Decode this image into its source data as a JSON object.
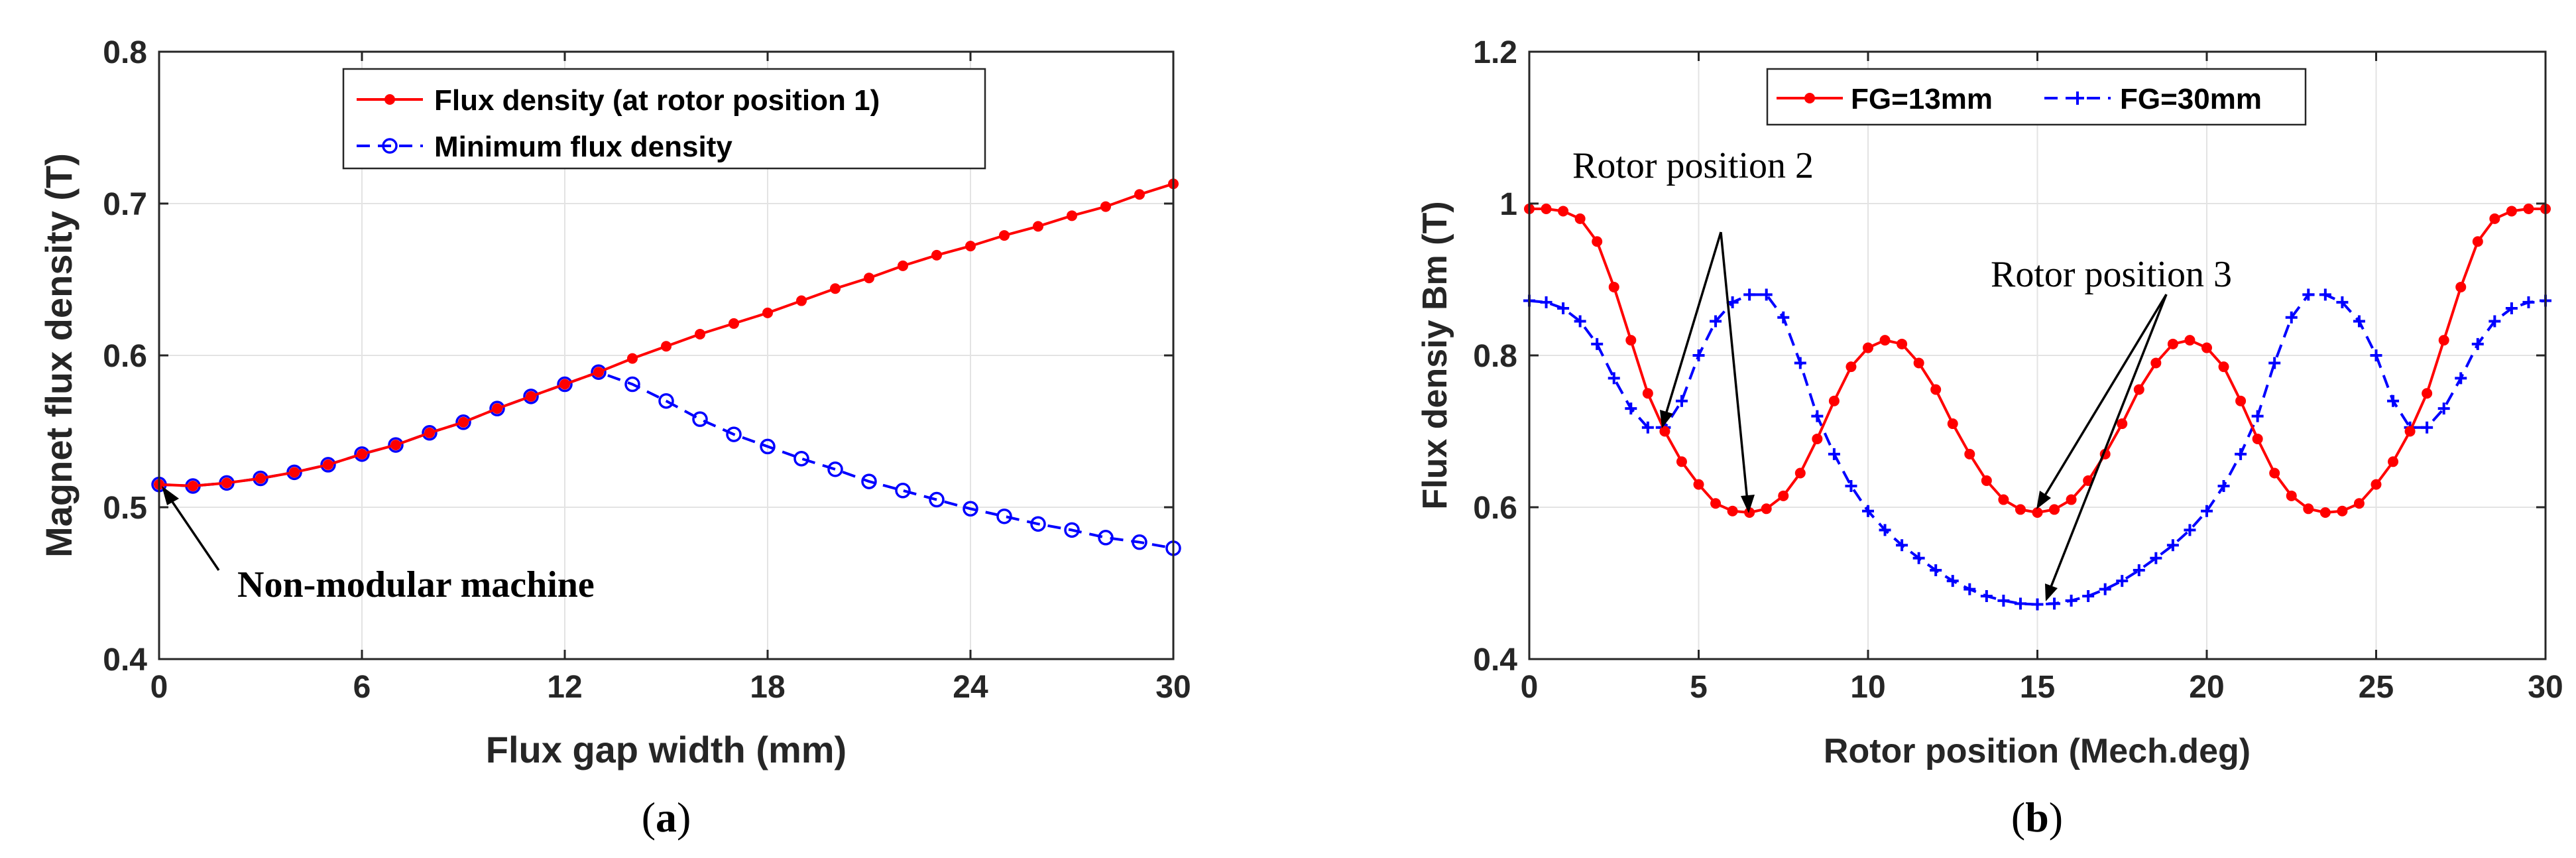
{
  "chart_data": [
    {
      "type": "line",
      "panel": "(a)",
      "panel_letter": "a",
      "xlabel": "Flux gap width (mm)",
      "ylabel": "Magnet flux density (T)",
      "xlim": [
        0,
        30
      ],
      "ylim": [
        0.4,
        0.8
      ],
      "xticks": [
        0,
        6,
        12,
        18,
        24,
        30
      ],
      "yticks": [
        0.4,
        0.5,
        0.6,
        0.7,
        0.8
      ],
      "xtick_labels": [
        "0",
        "6",
        "12",
        "18",
        "24",
        "30"
      ],
      "ytick_labels": [
        "0.4",
        "0.5",
        "0.6",
        "0.7",
        "0.8"
      ],
      "grid": true,
      "legend_position": "top-right",
      "series": [
        {
          "name": "Flux density (at rotor position 1)",
          "color": "#ff0000",
          "style": "solid",
          "marker": "dot",
          "x": [
            0,
            1,
            2,
            3,
            4,
            5,
            6,
            7,
            8,
            9,
            10,
            11,
            12,
            13,
            14,
            15,
            16,
            17,
            18,
            19,
            20,
            21,
            22,
            23,
            24,
            25,
            26,
            27,
            28,
            29,
            30
          ],
          "values": [
            0.515,
            0.514,
            0.516,
            0.519,
            0.523,
            0.528,
            0.535,
            0.541,
            0.549,
            0.556,
            0.565,
            0.573,
            0.581,
            0.589,
            0.598,
            0.606,
            0.614,
            0.621,
            0.628,
            0.636,
            0.644,
            0.651,
            0.659,
            0.666,
            0.672,
            0.679,
            0.685,
            0.692,
            0.698,
            0.706,
            0.713
          ]
        },
        {
          "name": "Minimum flux density",
          "color": "#0000ff",
          "style": "dashed",
          "marker": "circle",
          "x": [
            0,
            1,
            2,
            3,
            4,
            5,
            6,
            7,
            8,
            9,
            10,
            11,
            12,
            13,
            14,
            15,
            16,
            17,
            18,
            19,
            20,
            21,
            22,
            23,
            24,
            25,
            26,
            27,
            28,
            29,
            30
          ],
          "values": [
            0.515,
            0.514,
            0.516,
            0.519,
            0.523,
            0.528,
            0.535,
            0.541,
            0.549,
            0.556,
            0.565,
            0.573,
            0.581,
            0.589,
            0.581,
            0.57,
            0.558,
            0.548,
            0.54,
            0.532,
            0.525,
            0.517,
            0.511,
            0.505,
            0.499,
            0.494,
            0.489,
            0.485,
            0.48,
            0.477,
            0.473
          ]
        }
      ],
      "annotations": [
        {
          "text": "Non-modular machine",
          "x": 0,
          "y": 0.515
        }
      ]
    },
    {
      "type": "line",
      "panel": "(b)",
      "panel_letter": "b",
      "xlabel": "Rotor position (Mech.deg)",
      "ylabel": "Flux densiy Bm (T)",
      "xlim": [
        0,
        30
      ],
      "ylim": [
        0.4,
        1.2
      ],
      "xticks": [
        0,
        5,
        10,
        15,
        20,
        25,
        30
      ],
      "yticks": [
        0.4,
        0.6,
        0.8,
        1.0,
        1.2
      ],
      "xtick_labels": [
        "0",
        "5",
        "10",
        "15",
        "20",
        "25",
        "30"
      ],
      "ytick_labels": [
        "0.4",
        "0.6",
        "0.8",
        "1",
        "1.2"
      ],
      "grid": true,
      "legend_position": "top",
      "series": [
        {
          "name": "FG=13mm",
          "color": "#ff0000",
          "style": "solid",
          "marker": "dot",
          "x": [
            0,
            0.5,
            1,
            1.5,
            2,
            2.5,
            3,
            3.5,
            4,
            4.5,
            5,
            5.5,
            6,
            6.5,
            7,
            7.5,
            8,
            8.5,
            9,
            9.5,
            10,
            10.5,
            11,
            11.5,
            12,
            12.5,
            13,
            13.5,
            14,
            14.5,
            15,
            15.5,
            16,
            16.5,
            17,
            17.5,
            18,
            18.5,
            19,
            19.5,
            20,
            20.5,
            21,
            21.5,
            22,
            22.5,
            23,
            23.5,
            24,
            24.5,
            25,
            25.5,
            26,
            26.5,
            27,
            27.5,
            28,
            28.5,
            29,
            29.5,
            30
          ],
          "values": [
            0.993,
            0.993,
            0.99,
            0.98,
            0.95,
            0.89,
            0.82,
            0.75,
            0.7,
            0.66,
            0.63,
            0.605,
            0.595,
            0.593,
            0.598,
            0.615,
            0.645,
            0.69,
            0.74,
            0.785,
            0.81,
            0.82,
            0.815,
            0.79,
            0.755,
            0.71,
            0.67,
            0.635,
            0.61,
            0.597,
            0.593,
            0.597,
            0.61,
            0.635,
            0.67,
            0.71,
            0.755,
            0.79,
            0.815,
            0.82,
            0.81,
            0.785,
            0.74,
            0.69,
            0.645,
            0.615,
            0.598,
            0.593,
            0.595,
            0.605,
            0.63,
            0.66,
            0.7,
            0.75,
            0.82,
            0.89,
            0.95,
            0.98,
            0.99,
            0.993,
            0.993
          ]
        },
        {
          "name": "FG=30mm",
          "color": "#0000ff",
          "style": "dashed",
          "marker": "plus",
          "x": [
            0,
            0.5,
            1,
            1.5,
            2,
            2.5,
            3,
            3.5,
            4,
            4.5,
            5,
            5.5,
            6,
            6.5,
            7,
            7.5,
            8,
            8.5,
            9,
            9.5,
            10,
            10.5,
            11,
            11.5,
            12,
            12.5,
            13,
            13.5,
            14,
            14.5,
            15,
            15.5,
            16,
            16.5,
            17,
            17.5,
            18,
            18.5,
            19,
            19.5,
            20,
            20.5,
            21,
            21.5,
            22,
            22.5,
            23,
            23.5,
            24,
            24.5,
            25,
            25.5,
            26,
            26.5,
            27,
            27.5,
            28,
            28.5,
            29,
            29.5,
            30
          ],
          "values": [
            0.872,
            0.87,
            0.862,
            0.845,
            0.815,
            0.77,
            0.73,
            0.705,
            0.705,
            0.74,
            0.8,
            0.845,
            0.87,
            0.88,
            0.88,
            0.85,
            0.79,
            0.72,
            0.67,
            0.628,
            0.595,
            0.57,
            0.55,
            0.533,
            0.517,
            0.503,
            0.492,
            0.483,
            0.477,
            0.473,
            0.472,
            0.473,
            0.477,
            0.483,
            0.492,
            0.503,
            0.517,
            0.533,
            0.55,
            0.57,
            0.595,
            0.628,
            0.67,
            0.72,
            0.79,
            0.85,
            0.88,
            0.88,
            0.87,
            0.845,
            0.8,
            0.74,
            0.705,
            0.705,
            0.73,
            0.77,
            0.815,
            0.845,
            0.862,
            0.87,
            0.872
          ]
        }
      ],
      "annotations": [
        {
          "text": "Rotor position 2"
        },
        {
          "text": "Rotor position 3"
        }
      ]
    }
  ]
}
